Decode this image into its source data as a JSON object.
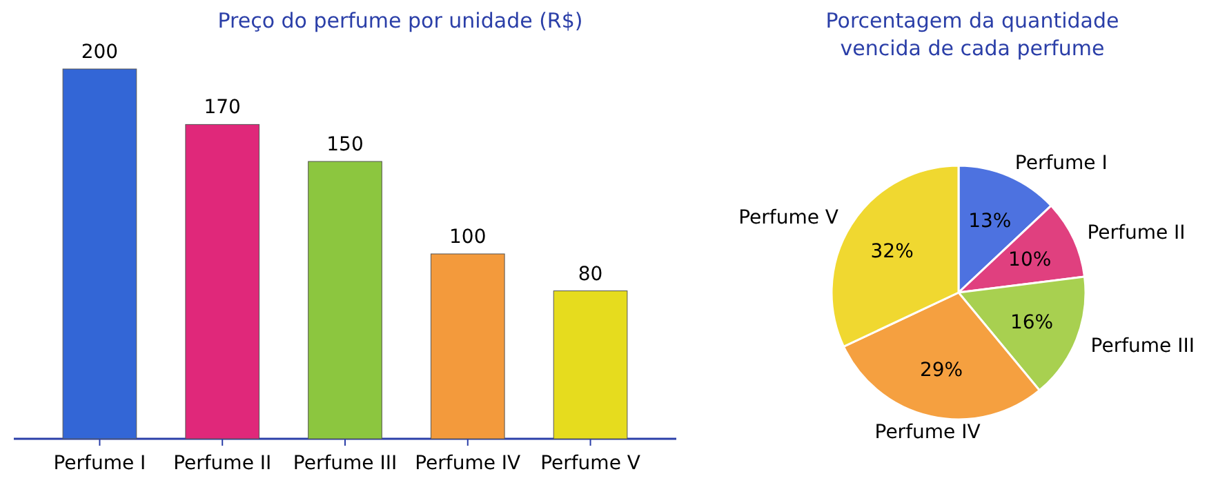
{
  "chart_data": [
    {
      "type": "bar",
      "title": "Preço do perfume por unidade (R$)",
      "categories": [
        "Perfume I",
        "Perfume II",
        "Perfume III",
        "Perfume IV",
        "Perfume V"
      ],
      "values": [
        200,
        170,
        150,
        100,
        80
      ],
      "colors": [
        "#3366d6",
        "#e0287a",
        "#8cc63f",
        "#f39a3c",
        "#e6dc1e"
      ],
      "data_labels": true
    },
    {
      "type": "pie",
      "title": "Porcentagem da quantidade vencida de cada perfume",
      "categories": [
        "Perfume I",
        "Perfume II",
        "Perfume III",
        "Perfume IV",
        "Perfume V"
      ],
      "values": [
        13,
        10,
        16,
        29,
        32
      ],
      "colors": [
        "#4d72e0",
        "#e0407f",
        "#a8d050",
        "#f5a040",
        "#f0d830"
      ],
      "value_labels": [
        "13%",
        "10%",
        "16%",
        "29%",
        "32%"
      ]
    }
  ]
}
